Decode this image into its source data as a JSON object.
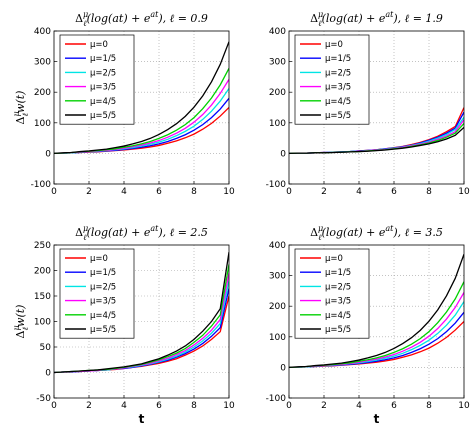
{
  "chart_data": [
    {
      "type": "line",
      "title": "Δ_ℓ^μ(log(at) + e^{at}), ℓ = 0.9",
      "title_parts": {
        "op": "Δ",
        "sup": "μ",
        "sub": "ℓ",
        "body": "(log(at) + e",
        "exp": "at",
        "tail": "), ℓ = 0.9"
      },
      "xlabel": "",
      "ylabel": "Δ_ℓ^μ w(t)",
      "ylabel_parts": {
        "op": "Δ",
        "sup": "μ",
        "sub": "ℓ",
        "body": "w(t)"
      },
      "xlim": [
        0,
        10
      ],
      "ylim": [
        -100,
        400
      ],
      "xticks": [
        "0",
        "2",
        "4",
        "6",
        "8",
        "10"
      ],
      "yticks": [
        "-100",
        "0",
        "100",
        "200",
        "300",
        "400"
      ],
      "grid": true,
      "legend_position": "top-left",
      "x": [
        0,
        0.5,
        1,
        1.5,
        2,
        2.5,
        3,
        3.5,
        4,
        4.5,
        5,
        5.5,
        6,
        6.5,
        7,
        7.5,
        8,
        8.5,
        9,
        9.5,
        10
      ],
      "series": [
        {
          "name": "μ=0",
          "color": "#ff0000",
          "values": [
            0,
            1,
            2,
            3,
            4,
            5,
            7,
            9,
            11,
            14,
            17,
            21,
            26,
            33,
            41,
            51,
            63,
            79,
            98,
            122,
            150
          ]
        },
        {
          "name": "μ=1/5",
          "color": "#0000ff",
          "values": [
            0,
            1,
            2,
            3,
            5,
            6,
            8,
            10,
            13,
            16,
            20,
            25,
            31,
            39,
            49,
            61,
            76,
            94,
            117,
            145,
            180
          ]
        },
        {
          "name": "μ=2/5",
          "color": "#00e5e5",
          "values": [
            0,
            1,
            2,
            4,
            5,
            7,
            9,
            12,
            15,
            19,
            24,
            30,
            37,
            46,
            58,
            72,
            89,
            111,
            138,
            171,
            212
          ]
        },
        {
          "name": "μ=3/5",
          "color": "#ff00ff",
          "values": [
            0,
            1,
            3,
            4,
            6,
            8,
            10,
            13,
            17,
            22,
            27,
            34,
            42,
            53,
            66,
            82,
            102,
            127,
            158,
            196,
            242
          ]
        },
        {
          "name": "μ=4/5",
          "color": "#00d000",
          "values": [
            0,
            1,
            3,
            5,
            7,
            9,
            12,
            15,
            20,
            25,
            31,
            39,
            49,
            61,
            76,
            94,
            117,
            146,
            181,
            224,
            278
          ]
        },
        {
          "name": "μ=5/5",
          "color": "#000000",
          "values": [
            0,
            2,
            3,
            6,
            8,
            11,
            14,
            19,
            24,
            31,
            39,
            49,
            62,
            78,
            97,
            121,
            151,
            188,
            234,
            291,
            365
          ]
        }
      ]
    },
    {
      "type": "line",
      "title": "Δ_ℓ^μ(log(at) + e^{at}), ℓ = 1.9",
      "title_parts": {
        "op": "Δ",
        "sup": "μ",
        "sub": "ℓ",
        "body": "(log(at) + e",
        "exp": "at",
        "tail": "), ℓ = 1.9"
      },
      "xlabel": "",
      "ylabel": "",
      "xlim": [
        0,
        10
      ],
      "ylim": [
        -100,
        400
      ],
      "xticks": [
        "0",
        "2",
        "4",
        "6",
        "8",
        "10"
      ],
      "yticks": [
        "-100",
        "0",
        "100",
        "200",
        "300",
        "400"
      ],
      "grid": true,
      "legend_position": "top-left",
      "x": [
        0,
        0.5,
        1,
        1.5,
        2,
        2.5,
        3,
        3.5,
        4,
        4.5,
        5,
        5.5,
        6,
        6.5,
        7,
        7.5,
        8,
        8.5,
        9,
        9.5,
        10
      ],
      "series": [
        {
          "name": "μ=0",
          "color": "#ff0000",
          "values": [
            0,
            1,
            1,
            2,
            3,
            4,
            5,
            6,
            8,
            10,
            12,
            15,
            19,
            23,
            29,
            36,
            45,
            56,
            71,
            88,
            150
          ]
        },
        {
          "name": "μ=1/5",
          "color": "#0000ff",
          "values": [
            0,
            1,
            1,
            2,
            3,
            4,
            5,
            6,
            8,
            10,
            12,
            15,
            18,
            22,
            27,
            34,
            43,
            53,
            66,
            83,
            135
          ]
        },
        {
          "name": "μ=2/5",
          "color": "#00e5e5",
          "values": [
            0,
            1,
            1,
            2,
            3,
            4,
            5,
            6,
            7,
            9,
            11,
            14,
            17,
            21,
            26,
            32,
            40,
            50,
            62,
            78,
            118
          ]
        },
        {
          "name": "μ=3/5",
          "color": "#ff00ff",
          "values": [
            0,
            1,
            1,
            2,
            3,
            3,
            4,
            5,
            7,
            9,
            11,
            13,
            16,
            20,
            25,
            30,
            37,
            46,
            57,
            71,
            110
          ]
        },
        {
          "name": "μ=4/5",
          "color": "#00d000",
          "values": [
            0,
            1,
            1,
            2,
            2,
            3,
            4,
            5,
            6,
            8,
            10,
            12,
            15,
            18,
            23,
            28,
            34,
            42,
            53,
            66,
            98
          ]
        },
        {
          "name": "μ=5/5",
          "color": "#000000",
          "values": [
            0,
            1,
            1,
            2,
            2,
            3,
            4,
            5,
            6,
            7,
            9,
            11,
            14,
            17,
            21,
            26,
            31,
            38,
            47,
            59,
            85
          ]
        }
      ]
    },
    {
      "type": "line",
      "title": "Δ_ℓ^μ(log(at) + e^{at}), ℓ = 2.5",
      "title_parts": {
        "op": "Δ",
        "sup": "μ",
        "sub": "ℓ",
        "body": "(log(at) + e",
        "exp": "at",
        "tail": "), ℓ = 2.5"
      },
      "xlabel": "t",
      "ylabel": "Δ_ℓ^μ w(t)",
      "ylabel_parts": {
        "op": "Δ",
        "sup": "μ",
        "sub": "ℓ",
        "body": "w(t)"
      },
      "xlim": [
        0,
        10
      ],
      "ylim": [
        -50,
        250
      ],
      "xticks": [
        "0",
        "2",
        "4",
        "6",
        "8",
        "10"
      ],
      "yticks": [
        "-50",
        "0",
        "50",
        "100",
        "150",
        "200",
        "250"
      ],
      "grid": true,
      "legend_position": "top-left",
      "x": [
        0,
        0.5,
        1,
        1.5,
        2,
        2.5,
        3,
        3.5,
        4,
        4.5,
        5,
        5.5,
        6,
        6.5,
        7,
        7.5,
        8,
        8.5,
        9,
        9.5,
        10
      ],
      "series": [
        {
          "name": "μ=0",
          "color": "#ff0000",
          "values": [
            0,
            1,
            1,
            2,
            3,
            4,
            5,
            6,
            8,
            10,
            12,
            15,
            18,
            22,
            27,
            34,
            42,
            52,
            65,
            80,
            150
          ]
        },
        {
          "name": "μ=1/5",
          "color": "#0000ff",
          "values": [
            0,
            1,
            1,
            2,
            3,
            4,
            5,
            7,
            8,
            10,
            13,
            16,
            20,
            24,
            30,
            37,
            46,
            57,
            71,
            88,
            165
          ]
        },
        {
          "name": "μ=2/5",
          "color": "#00e5e5",
          "values": [
            0,
            1,
            2,
            2,
            3,
            4,
            5,
            7,
            9,
            11,
            14,
            17,
            21,
            26,
            32,
            40,
            50,
            62,
            77,
            96,
            180
          ]
        },
        {
          "name": "μ=3/5",
          "color": "#ff00ff",
          "values": [
            0,
            1,
            2,
            2,
            3,
            4,
            6,
            7,
            9,
            12,
            15,
            18,
            23,
            28,
            35,
            43,
            54,
            67,
            83,
            104,
            195
          ]
        },
        {
          "name": "μ=4/5",
          "color": "#00d000",
          "values": [
            0,
            1,
            2,
            3,
            4,
            5,
            6,
            8,
            10,
            13,
            16,
            20,
            25,
            31,
            38,
            47,
            59,
            73,
            91,
            113,
            212
          ]
        },
        {
          "name": "μ=5/5",
          "color": "#000000",
          "values": [
            0,
            1,
            2,
            3,
            4,
            5,
            7,
            9,
            11,
            14,
            17,
            22,
            27,
            34,
            42,
            52,
            65,
            81,
            100,
            125,
            236
          ]
        }
      ]
    },
    {
      "type": "line",
      "title": "Δ_ℓ^μ(log(at) + e^{at}), ℓ = 3.5",
      "title_parts": {
        "op": "Δ",
        "sup": "μ",
        "sub": "ℓ",
        "body": "(log(at) + e",
        "exp": "at",
        "tail": "), ℓ = 3.5"
      },
      "xlabel": "t",
      "ylabel": "",
      "xlim": [
        0,
        10
      ],
      "ylim": [
        -100,
        400
      ],
      "xticks": [
        "0",
        "2",
        "4",
        "6",
        "8",
        "10"
      ],
      "yticks": [
        "-100",
        "0",
        "100",
        "200",
        "300",
        "400"
      ],
      "grid": true,
      "legend_position": "top-left",
      "x": [
        0,
        0.5,
        1,
        1.5,
        2,
        2.5,
        3,
        3.5,
        4,
        4.5,
        5,
        5.5,
        6,
        6.5,
        7,
        7.5,
        8,
        8.5,
        9,
        9.5,
        10
      ],
      "series": [
        {
          "name": "μ=0",
          "color": "#ff0000",
          "values": [
            0,
            1,
            2,
            3,
            4,
            5,
            7,
            9,
            11,
            14,
            17,
            21,
            26,
            33,
            41,
            51,
            63,
            79,
            98,
            122,
            150
          ]
        },
        {
          "name": "μ=1/5",
          "color": "#0000ff",
          "values": [
            0,
            1,
            2,
            3,
            5,
            6,
            8,
            10,
            13,
            16,
            20,
            25,
            31,
            39,
            49,
            61,
            76,
            94,
            117,
            145,
            180
          ]
        },
        {
          "name": "μ=2/5",
          "color": "#00e5e5",
          "values": [
            0,
            1,
            2,
            4,
            5,
            7,
            9,
            12,
            15,
            19,
            24,
            30,
            37,
            46,
            58,
            72,
            89,
            111,
            138,
            171,
            215
          ]
        },
        {
          "name": "μ=3/5",
          "color": "#ff00ff",
          "values": [
            0,
            1,
            3,
            4,
            6,
            8,
            10,
            13,
            17,
            22,
            27,
            34,
            42,
            53,
            66,
            82,
            102,
            127,
            158,
            196,
            245
          ]
        },
        {
          "name": "μ=4/5",
          "color": "#00d000",
          "values": [
            0,
            1,
            3,
            5,
            7,
            9,
            12,
            15,
            20,
            25,
            31,
            39,
            49,
            61,
            76,
            94,
            117,
            146,
            181,
            224,
            280
          ]
        },
        {
          "name": "μ=5/5",
          "color": "#000000",
          "values": [
            0,
            2,
            3,
            6,
            8,
            11,
            14,
            19,
            24,
            31,
            39,
            49,
            62,
            78,
            97,
            121,
            151,
            188,
            234,
            291,
            370
          ]
        }
      ]
    }
  ]
}
